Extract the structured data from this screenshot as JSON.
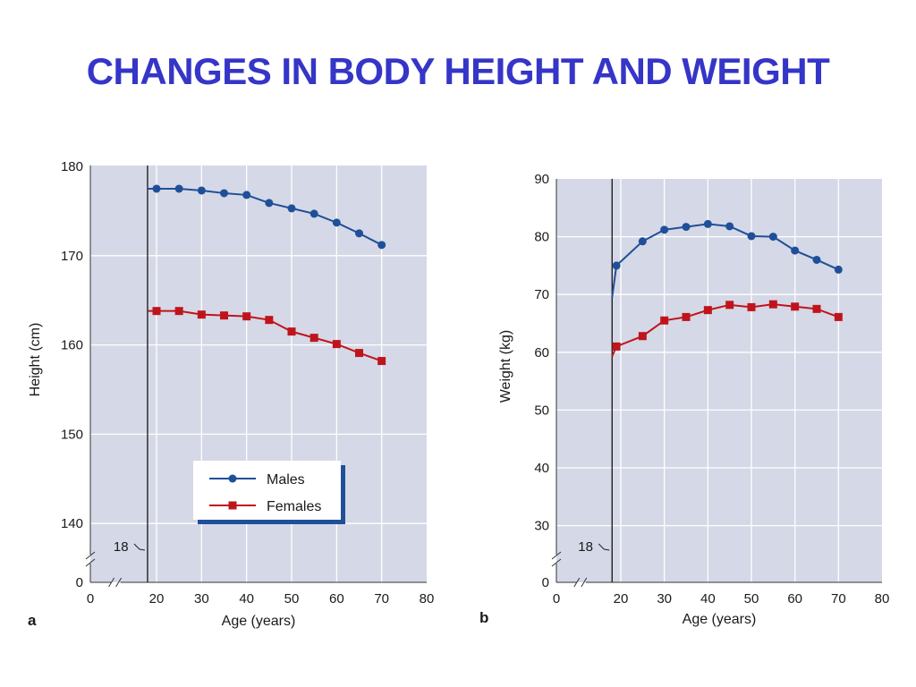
{
  "page": {
    "title": "CHANGES IN BODY HEIGHT AND WEIGHT"
  },
  "colors": {
    "males": "#1f4f99",
    "females": "#c0141c",
    "plot_background": "#d5d8e6",
    "grid": "#ffffff",
    "title": "#3535c8"
  },
  "chart_data": [
    {
      "panel": "a",
      "type": "line",
      "xlabel": "Age (years)",
      "ylabel": "Height (cm)",
      "xlim": [
        0,
        80
      ],
      "ylim": [
        135,
        180
      ],
      "axis_break": true,
      "x_ticks": [
        0,
        20,
        30,
        40,
        50,
        60,
        70,
        80
      ],
      "y_ticks": [
        0,
        140,
        150,
        160,
        170,
        180
      ],
      "reference_line": {
        "x": 18,
        "label": "18"
      },
      "grid": true,
      "legend": {
        "placement": "bottom-center"
      },
      "series": [
        {
          "name": "Males",
          "marker": "circle",
          "start": {
            "x": 18,
            "y": 177.5
          },
          "x": [
            20,
            25,
            30,
            35,
            40,
            45,
            50,
            55,
            60,
            65,
            70
          ],
          "values": [
            177.5,
            177.5,
            177.3,
            177.0,
            176.8,
            175.9,
            175.3,
            174.7,
            173.7,
            172.5,
            171.2
          ]
        },
        {
          "name": "Females",
          "marker": "square",
          "start": {
            "x": 18,
            "y": 163.8
          },
          "x": [
            20,
            25,
            30,
            35,
            40,
            45,
            50,
            55,
            60,
            65,
            70
          ],
          "values": [
            163.8,
            163.8,
            163.4,
            163.3,
            163.2,
            162.8,
            161.5,
            160.8,
            160.1,
            159.1,
            158.2
          ]
        }
      ]
    },
    {
      "panel": "b",
      "type": "line",
      "xlabel": "Age (years)",
      "ylabel": "Weight (kg)",
      "xlim": [
        0,
        80
      ],
      "ylim": [
        0,
        90
      ],
      "axis_break": true,
      "x_ticks": [
        0,
        20,
        30,
        40,
        50,
        60,
        70,
        80
      ],
      "y_ticks": [
        0,
        30,
        40,
        50,
        60,
        70,
        80,
        90
      ],
      "reference_line": {
        "x": 18,
        "label": "18"
      },
      "grid": true,
      "series": [
        {
          "name": "Males",
          "marker": "circle",
          "start": {
            "x": 18,
            "y": 69.5
          },
          "x": [
            19,
            25,
            30,
            35,
            40,
            45,
            50,
            55,
            60,
            65,
            70
          ],
          "values": [
            75.0,
            79.2,
            81.2,
            81.7,
            82.2,
            81.8,
            80.1,
            80.0,
            77.6,
            76.0,
            74.3
          ]
        },
        {
          "name": "Females",
          "marker": "square",
          "start": {
            "x": 18,
            "y": 59.3
          },
          "x": [
            19,
            25,
            30,
            35,
            40,
            45,
            50,
            55,
            60,
            65,
            70
          ],
          "values": [
            61.0,
            62.8,
            65.5,
            66.1,
            67.3,
            68.2,
            67.8,
            68.3,
            67.9,
            67.5,
            66.1
          ]
        }
      ]
    }
  ]
}
